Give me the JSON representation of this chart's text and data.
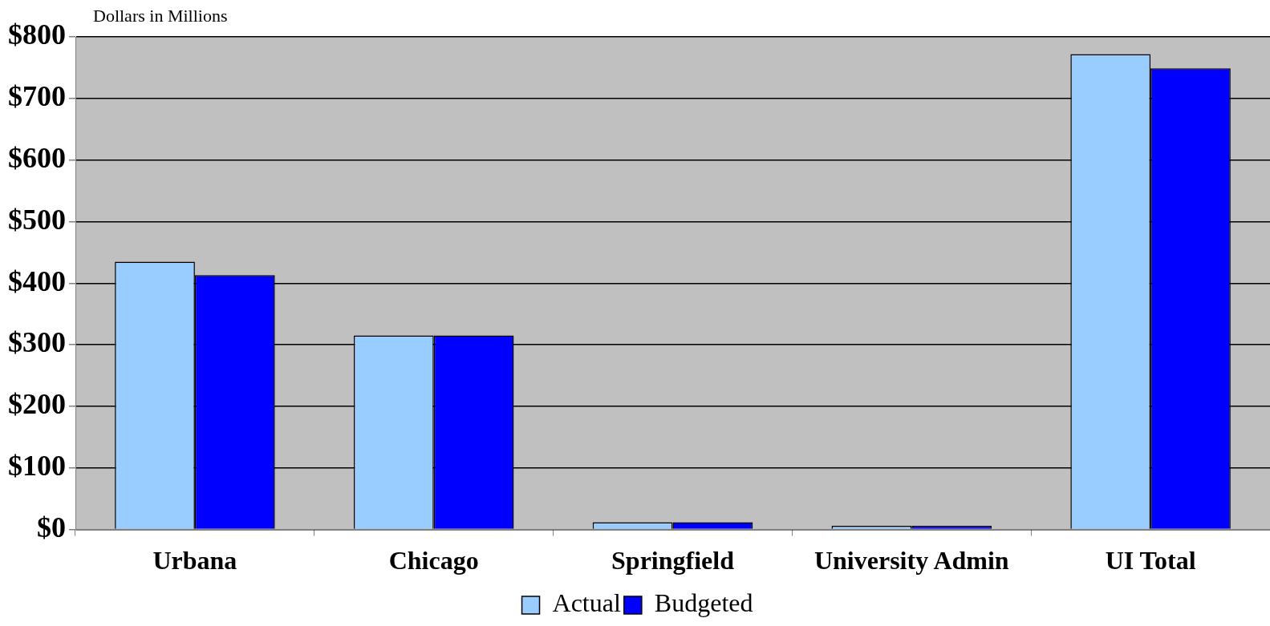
{
  "chart_data": {
    "type": "bar",
    "ylabel": "Dollars in Millions",
    "categories": [
      "Urbana",
      "Chicago",
      "Springfield",
      "University Admin",
      "UI Total"
    ],
    "series": [
      {
        "name": "Actual",
        "color": "#99ccff",
        "values": [
          435,
          315,
          12,
          6,
          772
        ]
      },
      {
        "name": "Budgeted",
        "color": "#0000ff",
        "values": [
          413,
          315,
          12,
          6,
          749
        ]
      }
    ],
    "ylim": [
      0,
      800
    ],
    "yticks": [
      {
        "value": 0,
        "label": "$0"
      },
      {
        "value": 100,
        "label": "$100"
      },
      {
        "value": 200,
        "label": "$200"
      },
      {
        "value": 300,
        "label": "$300"
      },
      {
        "value": 400,
        "label": "$400"
      },
      {
        "value": 500,
        "label": "$500"
      },
      {
        "value": 600,
        "label": "$600"
      },
      {
        "value": 700,
        "label": "$700"
      },
      {
        "value": 800,
        "label": "$800"
      }
    ],
    "grid": "y",
    "legend": "bottom"
  }
}
